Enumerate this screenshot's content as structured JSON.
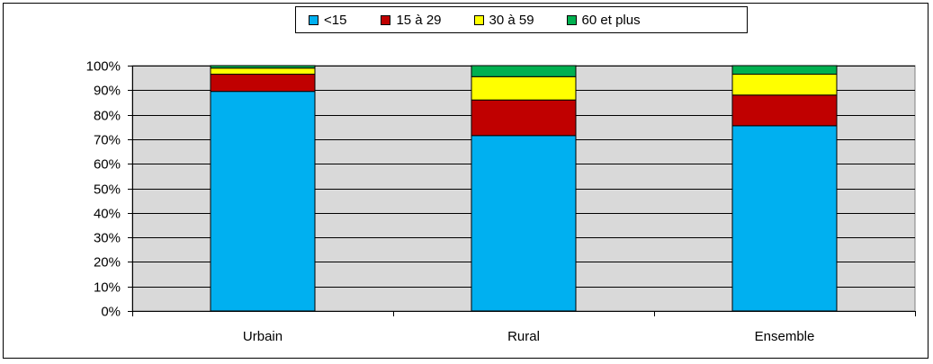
{
  "chart_data": {
    "type": "bar",
    "stacked": true,
    "percent": true,
    "categories": [
      "Urbain",
      "Rural",
      "Ensemble"
    ],
    "series": [
      {
        "name": "<15",
        "color": "#00b0f0",
        "values": [
          89.5,
          71.5,
          75.5
        ]
      },
      {
        "name": "15 à 29",
        "color": "#c00000",
        "values": [
          7,
          14.5,
          12.5
        ]
      },
      {
        "name": "30 à 59",
        "color": "#ffff00",
        "values": [
          2.5,
          9.5,
          8.5
        ]
      },
      {
        "name": "60 et plus",
        "color": "#00b050",
        "values": [
          1,
          4.5,
          3.5
        ]
      }
    ],
    "y_ticks": [
      "0%",
      "10%",
      "20%",
      "30%",
      "40%",
      "50%",
      "60%",
      "70%",
      "80%",
      "90%",
      "100%"
    ],
    "ylim": [
      0,
      100
    ],
    "grid": true,
    "plot_background": "#d9d9d9",
    "legend_position": "top"
  }
}
